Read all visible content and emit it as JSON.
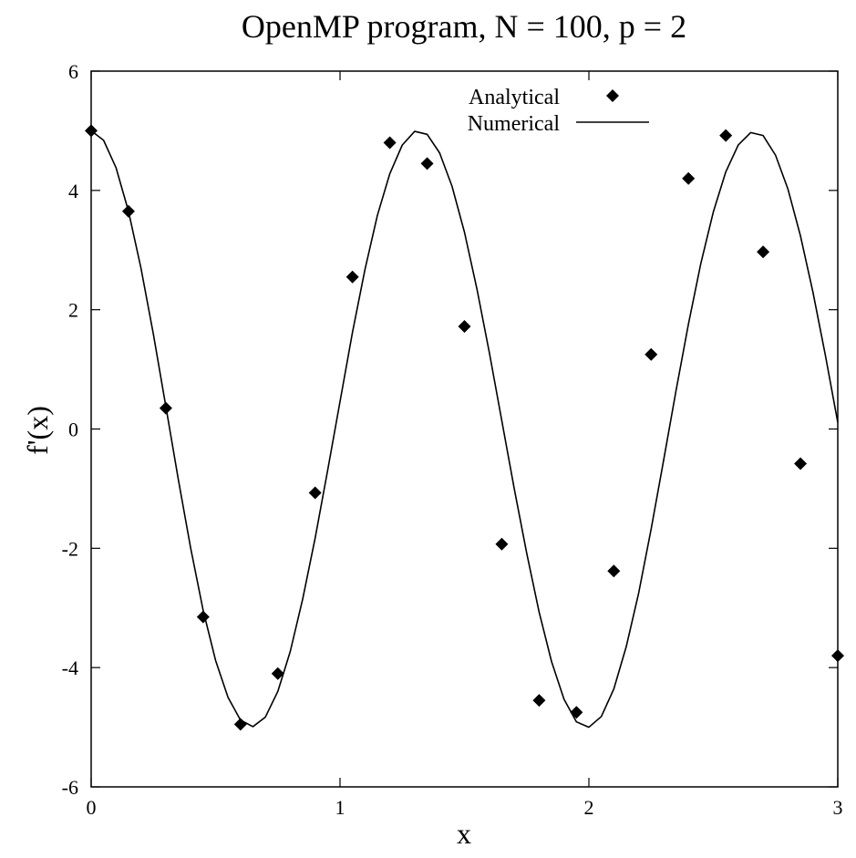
{
  "chart_data": {
    "type": "line",
    "title": "OpenMP program, N = 100, p = 2",
    "xlabel": "x",
    "ylabel": "f'(x)",
    "xlim": [
      0,
      3
    ],
    "ylim": [
      -6,
      6
    ],
    "x_ticks": [
      0,
      1,
      2,
      3
    ],
    "y_ticks": [
      -6,
      -4,
      -2,
      0,
      2,
      4,
      6
    ],
    "grid": false,
    "legend_position": "top-center",
    "series": [
      {
        "name": "Analytical",
        "style": "diamond-markers",
        "color": "#000000",
        "x": [
          0.0,
          0.15,
          0.3,
          0.45,
          0.6,
          0.75,
          0.9,
          1.05,
          1.2,
          1.35,
          1.5,
          1.65,
          1.8,
          1.95,
          2.1,
          2.25,
          2.4,
          2.55,
          2.7,
          2.85,
          3.0
        ],
        "y": [
          5.0,
          3.65,
          0.35,
          -3.15,
          -4.95,
          -4.1,
          -1.07,
          2.55,
          4.8,
          4.45,
          1.72,
          -1.93,
          -4.55,
          -4.75,
          -2.38,
          1.25,
          4.2,
          4.92,
          2.97,
          -0.58,
          -3.8
        ]
      },
      {
        "name": "Numerical",
        "style": "line",
        "color": "#000000",
        "x": [
          0.0,
          0.05,
          0.1,
          0.15,
          0.2,
          0.25,
          0.3,
          0.35,
          0.4,
          0.45,
          0.5,
          0.55,
          0.6,
          0.65,
          0.7,
          0.75,
          0.8,
          0.85,
          0.9,
          0.95,
          1.0,
          1.05,
          1.1,
          1.15,
          1.2,
          1.25,
          1.3,
          1.35,
          1.4,
          1.45,
          1.5,
          1.55,
          1.6,
          1.65,
          1.7,
          1.75,
          1.8,
          1.85,
          1.9,
          1.95,
          2.0,
          2.05,
          2.1,
          2.15,
          2.2,
          2.25,
          2.3,
          2.35,
          2.4,
          2.45,
          2.5,
          2.55,
          2.6,
          2.65,
          2.7,
          2.75,
          2.8,
          2.85,
          2.9,
          2.95,
          3.0
        ],
        "y": [
          5.0,
          4.84,
          4.38,
          3.65,
          2.7,
          1.59,
          0.38,
          -0.84,
          -2.0,
          -3.04,
          -3.88,
          -4.5,
          -4.88,
          -4.99,
          -4.83,
          -4.4,
          -3.73,
          -2.85,
          -1.83,
          -0.7,
          0.46,
          1.62,
          2.67,
          3.58,
          4.28,
          4.76,
          4.99,
          4.94,
          4.63,
          4.07,
          3.3,
          2.35,
          1.28,
          0.14,
          -1.0,
          -2.08,
          -3.07,
          -3.9,
          -4.53,
          -4.91,
          -5.0,
          -4.82,
          -4.36,
          -3.65,
          -2.75,
          -1.68,
          -0.53,
          0.64,
          1.76,
          2.78,
          3.64,
          4.31,
          4.76,
          4.97,
          4.92,
          4.59,
          4.02,
          3.24,
          2.3,
          1.24,
          0.11
        ]
      }
    ]
  }
}
